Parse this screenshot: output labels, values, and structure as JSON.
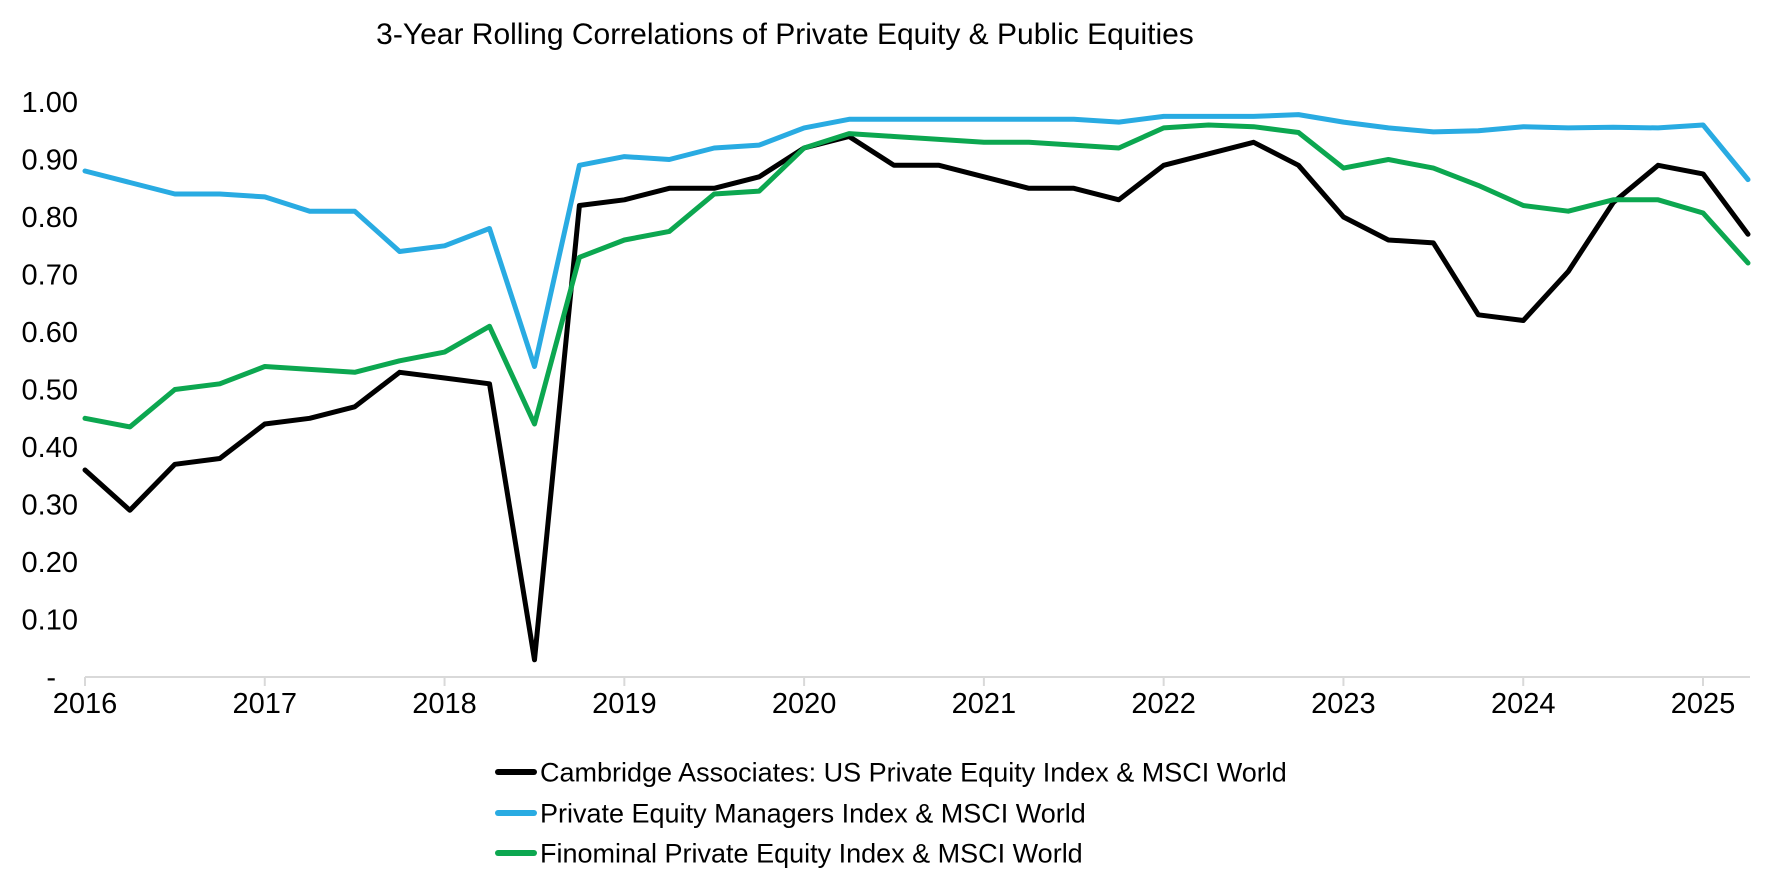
{
  "title": "3-Year Rolling Correlations of Private Equity & Public Equities",
  "chart_data": {
    "type": "line",
    "title": "3-Year Rolling Correlations of Private Equity & Public Equities",
    "subtitle": "",
    "xlabel": "",
    "ylabel": "",
    "x_start": 2016,
    "x_step": 0.25,
    "x_tick_labels": [
      "2016",
      "2017",
      "2018",
      "2019",
      "2020",
      "2021",
      "2022",
      "2023",
      "2024",
      "2025"
    ],
    "y_tick_labels": [
      "1.00",
      "0.90",
      "0.80",
      "0.70",
      "0.60",
      "0.50",
      "0.40",
      "0.30",
      "0.20",
      "0.10",
      "-"
    ],
    "y_tick_values": [
      1.0,
      0.9,
      0.8,
      0.7,
      0.6,
      0.5,
      0.4,
      0.3,
      0.2,
      0.1,
      0
    ],
    "ylim": [
      0,
      1.0
    ],
    "xlim": [
      2016,
      2025.3
    ],
    "grid": false,
    "legend_position": "bottom-left",
    "axis_color": "#d9d9d9",
    "text_color": "#000000",
    "series": [
      {
        "name": "Cambridge Associates: US Private Equity Index & MSCI World",
        "color": "#000000",
        "values": [
          0.36,
          0.29,
          0.37,
          0.38,
          0.44,
          0.45,
          0.47,
          0.53,
          0.52,
          0.51,
          0.03,
          0.82,
          0.83,
          0.85,
          0.85,
          0.87,
          0.92,
          0.94,
          0.89,
          0.89,
          0.87,
          0.85,
          0.85,
          0.83,
          0.89,
          0.91,
          0.93,
          0.89,
          0.8,
          0.76,
          0.755,
          0.63,
          0.62,
          0.705,
          0.825,
          0.89,
          0.875,
          0.77
        ]
      },
      {
        "name": "Private Equity Managers Index & MSCI World",
        "color": "#29abe2",
        "values": [
          0.88,
          0.86,
          0.84,
          0.84,
          0.835,
          0.81,
          0.81,
          0.74,
          0.75,
          0.78,
          0.54,
          0.89,
          0.905,
          0.9,
          0.92,
          0.925,
          0.955,
          0.97,
          0.97,
          0.97,
          0.97,
          0.97,
          0.97,
          0.965,
          0.975,
          0.975,
          0.975,
          0.978,
          0.965,
          0.955,
          0.948,
          0.95,
          0.957,
          0.955,
          0.956,
          0.955,
          0.96,
          0.865
        ]
      },
      {
        "name": "Finominal Private Equity Index & MSCI World",
        "color": "#0ca750",
        "values": [
          0.45,
          0.435,
          0.5,
          0.51,
          0.54,
          0.535,
          0.53,
          0.55,
          0.565,
          0.61,
          0.44,
          0.73,
          0.76,
          0.775,
          0.84,
          0.845,
          0.92,
          0.945,
          0.94,
          0.935,
          0.93,
          0.93,
          0.925,
          0.92,
          0.955,
          0.96,
          0.957,
          0.947,
          0.885,
          0.9,
          0.885,
          0.855,
          0.82,
          0.81,
          0.83,
          0.83,
          0.807,
          0.72
        ]
      }
    ]
  }
}
